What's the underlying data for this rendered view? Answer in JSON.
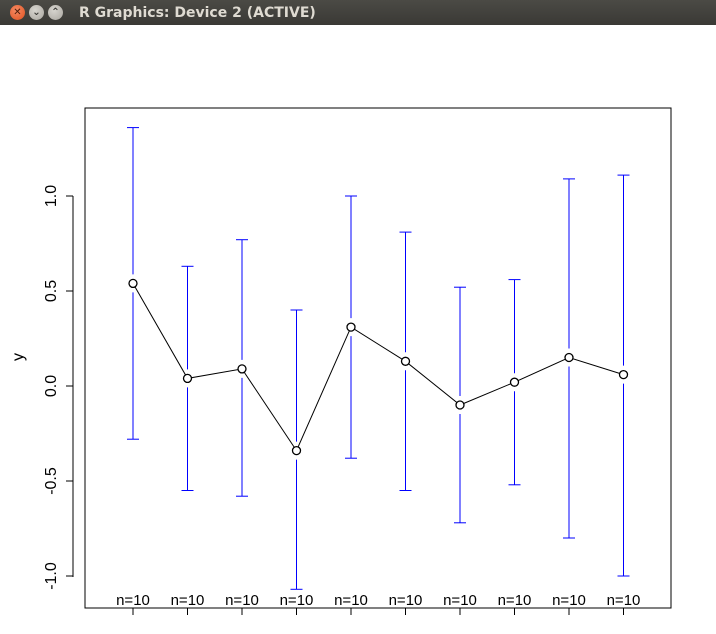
{
  "window": {
    "title": "R Graphics: Device 2 (ACTIVE)",
    "close_icon": "close-icon",
    "minimize_icon": "minimize-icon",
    "maximize_icon": "maximize-icon"
  },
  "chart_data": {
    "type": "line",
    "title": "",
    "xlabel": "",
    "ylabel": "y",
    "ylim": [
      -1.0,
      1.0
    ],
    "yticks": [
      -1.0,
      -0.5,
      0.0,
      0.5,
      1.0
    ],
    "ytick_labels": [
      "-1.0",
      "-0.5",
      "0.0",
      "0.5",
      "1.0"
    ],
    "x": [
      1,
      2,
      3,
      4,
      5,
      6,
      7,
      8,
      9,
      10
    ],
    "points": [
      {
        "y": 0.54,
        "lower": -0.28,
        "upper": 1.36,
        "n_label": "n=10"
      },
      {
        "y": 0.04,
        "lower": -0.55,
        "upper": 0.63,
        "n_label": "n=10"
      },
      {
        "y": 0.09,
        "lower": -0.58,
        "upper": 0.77,
        "n_label": "n=10"
      },
      {
        "y": -0.34,
        "lower": -1.07,
        "upper": 0.4,
        "n_label": "n=10"
      },
      {
        "y": 0.31,
        "lower": -0.38,
        "upper": 1.0,
        "n_label": "n=10"
      },
      {
        "y": 0.13,
        "lower": -0.55,
        "upper": 0.81,
        "n_label": "n=10"
      },
      {
        "y": -0.1,
        "lower": -0.72,
        "upper": 0.52,
        "n_label": "n=10"
      },
      {
        "y": 0.02,
        "lower": -0.52,
        "upper": 0.56,
        "n_label": "n=10"
      },
      {
        "y": 0.15,
        "lower": -0.8,
        "upper": 1.09,
        "n_label": "n=10"
      },
      {
        "y": 0.06,
        "lower": -1.0,
        "upper": 1.11,
        "n_label": "n=10"
      }
    ],
    "colors": {
      "errorbar": "#0000ff",
      "line": "#000000",
      "point": "#000000"
    },
    "grid": false,
    "legend": "none"
  }
}
